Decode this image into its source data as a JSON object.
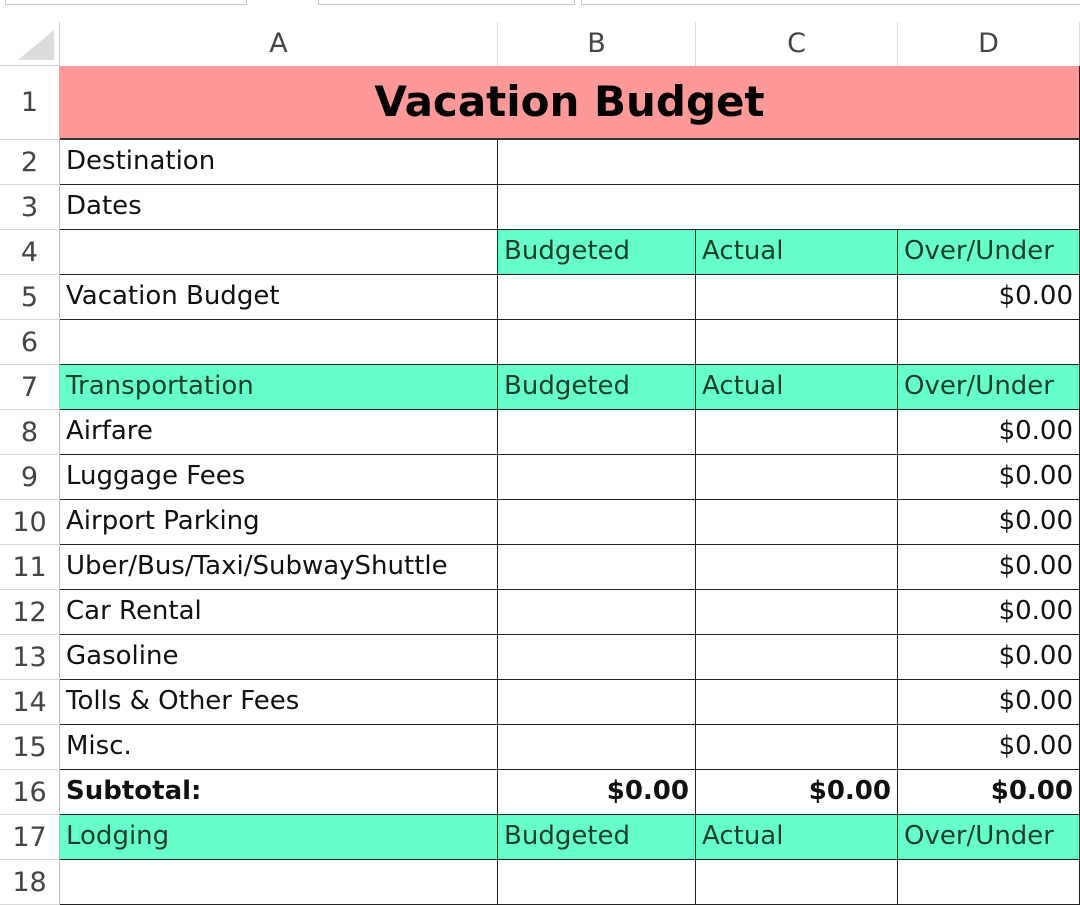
{
  "columns": [
    "A",
    "B",
    "C",
    "D"
  ],
  "title": "Vacation Budget",
  "colors": {
    "title_bg": "#FF9999",
    "header_bg": "#66FFCC"
  },
  "rows": [
    {
      "n": "2",
      "cells": [
        "Destination",
        "",
        null,
        null
      ],
      "merge": true
    },
    {
      "n": "3",
      "cells": [
        "Dates",
        "",
        null,
        null
      ],
      "merge": true
    },
    {
      "n": "4",
      "cells": [
        "",
        "Budgeted",
        "Actual",
        "Over/Under"
      ],
      "hdr": "bcd"
    },
    {
      "n": "5",
      "cells": [
        "Vacation Budget",
        "",
        "",
        "$0.00"
      ]
    },
    {
      "n": "6",
      "cells": [
        "",
        "",
        "",
        ""
      ]
    },
    {
      "n": "7",
      "cells": [
        "Transportation",
        "Budgeted",
        "Actual",
        "Over/Under"
      ],
      "hdr": "abcd"
    },
    {
      "n": "8",
      "cells": [
        "Airfare",
        "",
        "",
        "$0.00"
      ]
    },
    {
      "n": "9",
      "cells": [
        "Luggage Fees",
        "",
        "",
        "$0.00"
      ]
    },
    {
      "n": "10",
      "cells": [
        "Airport Parking",
        "",
        "",
        "$0.00"
      ]
    },
    {
      "n": "11",
      "cells": [
        "Uber/Bus/Taxi/SubwayShuttle",
        "",
        "",
        "$0.00"
      ]
    },
    {
      "n": "12",
      "cells": [
        "Car Rental",
        "",
        "",
        "$0.00"
      ]
    },
    {
      "n": "13",
      "cells": [
        "Gasoline",
        "",
        "",
        "$0.00"
      ]
    },
    {
      "n": "14",
      "cells": [
        "Tolls & Other Fees",
        "",
        "",
        "$0.00"
      ]
    },
    {
      "n": "15",
      "cells": [
        "Misc.",
        "",
        "",
        "$0.00"
      ]
    },
    {
      "n": "16",
      "cells": [
        "Subtotal:",
        "$0.00",
        "$0.00",
        "$0.00"
      ],
      "bold": true
    },
    {
      "n": "17",
      "cells": [
        "Lodging",
        "Budgeted",
        "Actual",
        "Over/Under"
      ],
      "hdr": "abcd"
    },
    {
      "n": "18",
      "cells": [
        "",
        "",
        "",
        ""
      ]
    }
  ]
}
